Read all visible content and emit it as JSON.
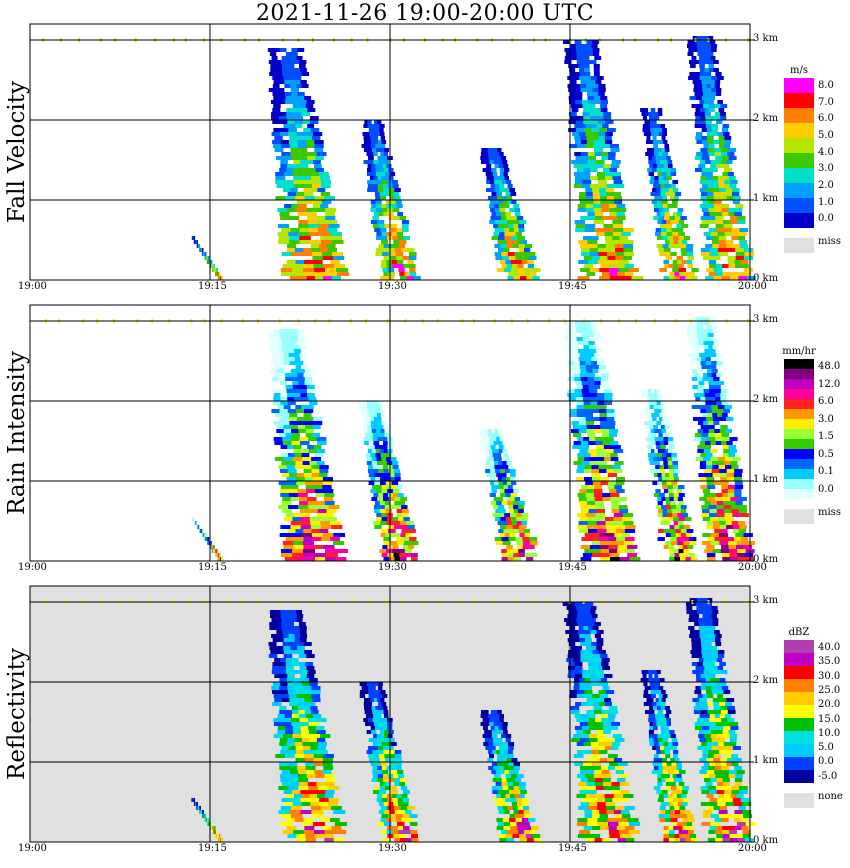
{
  "title": "2021-11-26   19:00-20:00 UTC",
  "x_ticks": [
    "19:00",
    "19:15",
    "19:30",
    "19:45",
    "20:00"
  ],
  "height_ticks": [
    "0 km",
    "1 km",
    "2 km",
    "3 km"
  ],
  "panels": [
    {
      "name": "fall-velocity",
      "ylabel": "Fall Velocity",
      "background": "#ffffff",
      "colorbar": {
        "unit": "m/s",
        "labels": [
          "8.0",
          "7.0",
          "6.0",
          "5.0",
          "4.0",
          "3.0",
          "2.0",
          "1.0",
          "0.0"
        ],
        "colors": [
          "#ff00ff",
          "#ff0000",
          "#ff8000",
          "#ffcc00",
          "#b4e600",
          "#3cc800",
          "#00e0c8",
          "#00a0ff",
          "#0050ff",
          "#0000c8"
        ],
        "miss_label": "miss",
        "miss_color": "#e0e0e0"
      }
    },
    {
      "name": "rain-intensity",
      "ylabel": "Rain Intensity",
      "background": "#ffffff",
      "colorbar": {
        "unit": "mm/hr",
        "labels": [
          "48.0",
          "12.0",
          "6.0",
          "3.0",
          "1.5",
          "0.5",
          "0.1",
          "0.0"
        ],
        "colors": [
          "#000000",
          "#800080",
          "#c000c0",
          "#ff00a0",
          "#ff2020",
          "#ff9900",
          "#ffee00",
          "#99ff33",
          "#33cc00",
          "#0000ff",
          "#0066ff",
          "#00ccff",
          "#99ffff",
          "#e0ffff"
        ],
        "miss_label": "miss",
        "miss_color": "#e0e0e0"
      }
    },
    {
      "name": "reflectivity",
      "ylabel": "Reflectivity",
      "background": "#e0e0e0",
      "colorbar": {
        "unit": "dBZ",
        "labels": [
          "40.0",
          "35.0",
          "30.0",
          "25.0",
          "20.0",
          "15.0",
          "10.0",
          "5.0",
          "0.0",
          "-5.0"
        ],
        "colors": [
          "#b040b0",
          "#c000c0",
          "#ff0000",
          "#ff8000",
          "#ffcc00",
          "#ffff00",
          "#00c000",
          "#00e0e0",
          "#00ccff",
          "#0040ff",
          "#0000a0"
        ],
        "miss_label": "none",
        "miss_color": "#e0e0e0"
      }
    }
  ]
}
